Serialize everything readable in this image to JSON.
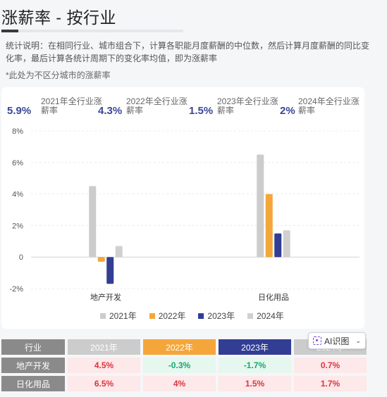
{
  "page": {
    "title": "涨薪率 - 按行业",
    "description": "统计说明：在相同行业、城市组合下，计算各职能月度薪酬的中位数，然后计算月度薪酬的同比变化率，最后计算各统计周期下的变化率均值，即为涨薪率",
    "note": "*此处为不区分城市的涨薪率"
  },
  "stats": [
    {
      "value": "5.9%",
      "label": "2021年全行业涨薪率"
    },
    {
      "value": "4.3%",
      "label": "2022年全行业涨薪率"
    },
    {
      "value": "1.5%",
      "label": "2023年全行业涨薪率"
    },
    {
      "value": "2%",
      "label": "2024年全行业涨薪率"
    }
  ],
  "chart_data": {
    "type": "bar",
    "categories": [
      "地产开发",
      "日化用品"
    ],
    "series": [
      {
        "name": "2021年",
        "color": "#cccccc",
        "values": [
          4.5,
          6.5
        ]
      },
      {
        "name": "2022年",
        "color": "#f5a63a",
        "values": [
          -0.3,
          4
        ]
      },
      {
        "name": "2023年",
        "color": "#323d94",
        "values": [
          -1.7,
          1.5
        ]
      },
      {
        "name": "2024年",
        "color": "#d0d0d0",
        "values": [
          0.7,
          1.7
        ]
      }
    ],
    "yticks": [
      "8%",
      "6%",
      "4%",
      "2%",
      "0",
      "-2%"
    ],
    "ylim": [
      -2,
      8
    ],
    "grid": true,
    "legend_position": "bottom"
  },
  "table": {
    "headers": [
      {
        "label": "行业",
        "color": "#8a8a8a"
      },
      {
        "label": "2021年",
        "color": "#cccccc"
      },
      {
        "label": "2022年",
        "color": "#f5a63a"
      },
      {
        "label": "2023年",
        "color": "#323d94"
      },
      {
        "label": "2024年",
        "color": "#cccccc"
      }
    ],
    "rows": [
      {
        "industry": "地产开发",
        "cells": [
          {
            "text": "4.5%",
            "tone": "pos"
          },
          {
            "text": "-0.3%",
            "tone": "neg"
          },
          {
            "text": "-1.7%",
            "tone": "neg"
          },
          {
            "text": "0.7%",
            "tone": "pos"
          }
        ]
      },
      {
        "industry": "日化用品",
        "cells": [
          {
            "text": "6.5%",
            "tone": "pos"
          },
          {
            "text": "4%",
            "tone": "pos"
          },
          {
            "text": "1.5%",
            "tone": "pos"
          },
          {
            "text": "1.7%",
            "tone": "pos"
          }
        ]
      }
    ]
  },
  "ai_button": {
    "label": "AI识图",
    "icon": "scan-icon"
  }
}
